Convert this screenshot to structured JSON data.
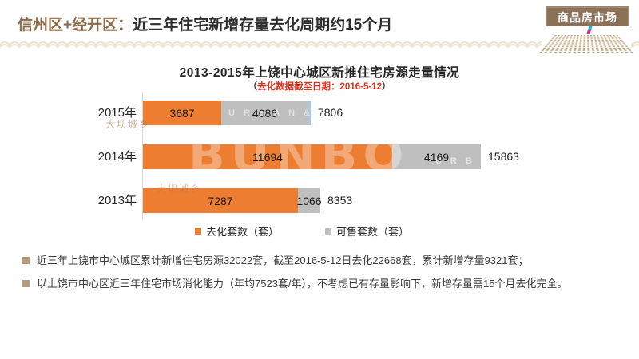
{
  "header": {
    "prefix": "信州区+经开区：",
    "title": "近三年住宅新增存量去化周期约15个月",
    "badge": "商品房市场"
  },
  "chart": {
    "title": "2013-2015年上饶中心城区新推住宅房源走量情况",
    "subtitle_open": "（",
    "subtitle_red": "去化数据截至日期：2016-5-12",
    "subtitle_close": "）"
  },
  "chart_data": {
    "type": "bar",
    "orientation": "horizontal",
    "categories": [
      "2015年",
      "2014年",
      "2013年"
    ],
    "series": [
      {
        "name": "去化套数（套）",
        "color": "#ED7D31",
        "values": [
          3687,
          11694,
          7287
        ]
      },
      {
        "name": "可售套数（套）",
        "color": "#BFBFBF",
        "values": [
          4086,
          4169,
          1066
        ]
      }
    ],
    "totals": [
      7806,
      15863,
      8353
    ],
    "stacked": true,
    "xlim": [
      0,
      16500
    ],
    "grid": false,
    "legend_position": "bottom"
  },
  "notes": [
    "近三年上饶市中心城区累计新增住宅房源32022套，截至2016-5-12日去化22668套，累计新增存量9321套；",
    "以上饶市中心区近三年住宅市场消化能力（年均7523套/年），不考虑已有存量影响下，新增存量需15个月去化完全。"
  ],
  "watermarks": {
    "logo": "BUNBO",
    "urban": "U R B A N  &  R U R",
    "urban2": "U R B A N  &",
    "cn": "大坝城乡"
  },
  "colors": {
    "orange": "#ED7D31",
    "gray": "#BFBFBF",
    "brown": "#8C6B4A",
    "badge_bg": "#8A7158",
    "red": "#E0301E",
    "tan_bullet": "#B49C7C",
    "axis": "#D9D9D9",
    "sliver_blue": "#A9C7E9"
  }
}
